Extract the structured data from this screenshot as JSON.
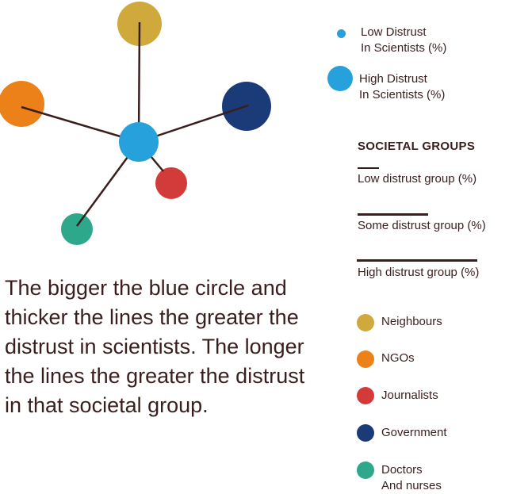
{
  "diagram": {
    "center": {
      "color": "#27a1dc"
    },
    "nodes": [
      {
        "name": "Neighbours",
        "color": "#cfa93b"
      },
      {
        "name": "NGOs",
        "color": "#ec8019"
      },
      {
        "name": "Government",
        "color": "#1b3a78"
      },
      {
        "name": "Journalists",
        "color": "#d33a3a"
      },
      {
        "name": "Doctors And nurses",
        "color": "#2da88a"
      }
    ],
    "line_color": "#3a1e1e"
  },
  "caption": "The bigger the blue circle and thicker the lines the greater the distrust in scientists. The longer the lines the greater the distrust in that societal group.",
  "legend": {
    "circles": [
      {
        "line1": "Low Distrust",
        "line2": "In Scientists (%)",
        "color": "#27a1dc"
      },
      {
        "line1": "High Distrust",
        "line2": "In Scientists (%)",
        "color": "#27a1dc"
      }
    ],
    "heading": "SOCIETAL GROUPS",
    "lines": [
      {
        "label": "Low distrust group (%)"
      },
      {
        "label": "Some distrust group (%)"
      },
      {
        "label": "High distrust group (%)"
      }
    ],
    "groups": [
      {
        "line1": "Neighbours",
        "line2": "",
        "color": "#cfa93b"
      },
      {
        "line1": "NGOs",
        "line2": "",
        "color": "#ec8019"
      },
      {
        "line1": "Journalists",
        "line2": "",
        "color": "#d33a3a"
      },
      {
        "line1": "Government",
        "line2": "",
        "color": "#1b3a78"
      },
      {
        "line1": "Doctors",
        "line2": "And nurses",
        "color": "#2da88a"
      }
    ]
  }
}
